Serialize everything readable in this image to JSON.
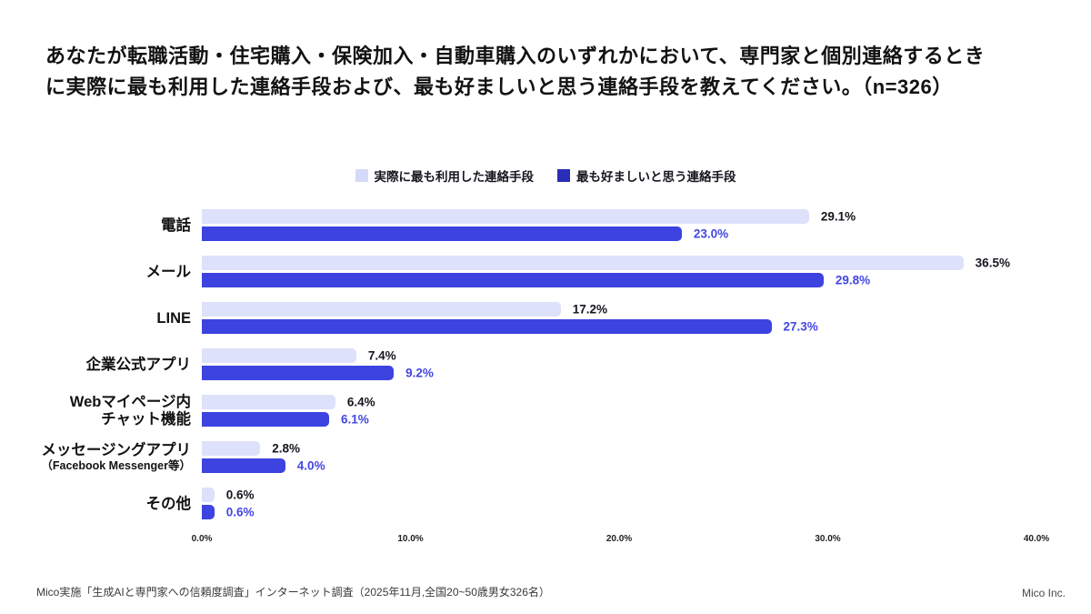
{
  "slide": {
    "title_lines": [
      "あなたが転職活動・住宅購入・保険加入・自動車購入のいずれかにおいて、専門家と個別連絡するとき",
      "に実際に最も利用した連絡手段および、最も好ましいと思う連絡手段を教えてください。（n=326）"
    ],
    "footer": {
      "source": "Mico実施「生成AIと専門家への信頼度調査」インターネット調査（2025年11月,全国20~50歳男女326名）",
      "company": "Mico Inc."
    }
  },
  "chart_data": {
    "type": "bar",
    "orientation": "horizontal",
    "title": "",
    "xlabel": "",
    "ylabel": "",
    "xlim": [
      0,
      40
    ],
    "x_ticks": [
      {
        "value": 0,
        "label": "0.0%"
      },
      {
        "value": 10,
        "label": "10.0%"
      },
      {
        "value": 20,
        "label": "20.0%"
      },
      {
        "value": 30,
        "label": "30.0%"
      },
      {
        "value": 40,
        "label": "40.0%"
      }
    ],
    "grid": false,
    "legend_position": "top-center",
    "value_suffix": "%",
    "categories": [
      {
        "lines": [
          "電話"
        ],
        "sub_small": false
      },
      {
        "lines": [
          "メール"
        ],
        "sub_small": false
      },
      {
        "lines": [
          "LINE"
        ],
        "sub_small": false
      },
      {
        "lines": [
          "企業公式アプリ"
        ],
        "sub_small": false
      },
      {
        "lines": [
          "Webマイページ内",
          "チャット機能"
        ],
        "sub_small": false
      },
      {
        "lines": [
          "メッセージングアプリ",
          "（Facebook Messenger等）"
        ],
        "sub_small": true
      },
      {
        "lines": [
          "その他"
        ],
        "sub_small": false
      }
    ],
    "series": [
      {
        "name": "実際に最も利用した連絡手段",
        "bar_color": "#dde1fa",
        "legend_color": "#d4daf7",
        "value_label_color": "#15151e",
        "values": [
          29.1,
          36.5,
          17.2,
          7.4,
          6.4,
          2.8,
          0.6
        ]
      },
      {
        "name": "最も好ましいと思う連絡手段",
        "bar_color": "#3d43df",
        "legend_color": "#2a2db8",
        "value_label_color": "#4347e2",
        "values": [
          23.0,
          29.8,
          27.3,
          9.2,
          6.1,
          4.0,
          0.6
        ]
      }
    ]
  }
}
